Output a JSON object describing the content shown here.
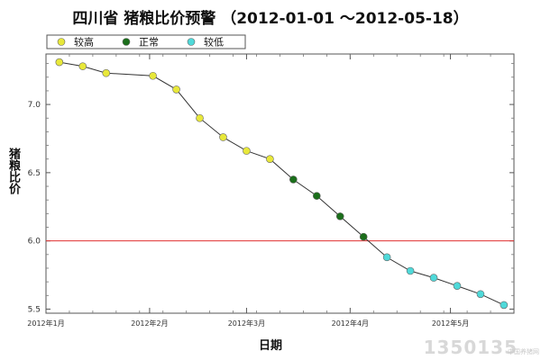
{
  "title": "四川省 猪粮比价预警 （2012-01-01 ～2012-05-18）",
  "xlabel": "日期",
  "ylabel": "猪粮比价",
  "watermark": {
    "text": "1350135",
    "sub": "中国养猪网"
  },
  "colors": {
    "high": "#e8e83a",
    "normal": "#1b6e1b",
    "low": "#4fd9d9",
    "line": "#333333",
    "threshold": "#e03030"
  },
  "chart_data": {
    "type": "scatter",
    "title": "四川省 猪粮比价预警 （2012-01-01 ～2012-05-18）",
    "xlabel": "日期",
    "ylabel": "猪粮比价",
    "legend": {
      "placement": "top-left",
      "entries": [
        {
          "key": "high",
          "label": "较高"
        },
        {
          "key": "normal",
          "label": "正常"
        },
        {
          "key": "low",
          "label": "较低"
        }
      ]
    },
    "xlim": [
      0,
      140
    ],
    "ylim": [
      5.47,
      7.37
    ],
    "xticks": [
      {
        "x": 0,
        "label": "2012年1月"
      },
      {
        "x": 31,
        "label": "2012年2月"
      },
      {
        "x": 60,
        "label": "2012年3月"
      },
      {
        "x": 91,
        "label": "2012年4月"
      },
      {
        "x": 121,
        "label": "2012年5月"
      }
    ],
    "yticks": [
      5.5,
      6.0,
      6.5,
      7.0
    ],
    "threshold": 6.0,
    "points": [
      {
        "x": 4,
        "y": 7.31,
        "level": "high"
      },
      {
        "x": 11,
        "y": 7.28,
        "level": "high"
      },
      {
        "x": 18,
        "y": 7.23,
        "level": "high"
      },
      {
        "x": 32,
        "y": 7.21,
        "level": "high"
      },
      {
        "x": 39,
        "y": 7.11,
        "level": "high"
      },
      {
        "x": 46,
        "y": 6.9,
        "level": "high"
      },
      {
        "x": 53,
        "y": 6.76,
        "level": "high"
      },
      {
        "x": 60,
        "y": 6.66,
        "level": "high"
      },
      {
        "x": 67,
        "y": 6.6,
        "level": "high"
      },
      {
        "x": 74,
        "y": 6.45,
        "level": "normal"
      },
      {
        "x": 81,
        "y": 6.33,
        "level": "normal"
      },
      {
        "x": 88,
        "y": 6.18,
        "level": "normal"
      },
      {
        "x": 95,
        "y": 6.03,
        "level": "normal"
      },
      {
        "x": 102,
        "y": 5.88,
        "level": "low"
      },
      {
        "x": 109,
        "y": 5.78,
        "level": "low"
      },
      {
        "x": 116,
        "y": 5.73,
        "level": "low"
      },
      {
        "x": 123,
        "y": 5.67,
        "level": "low"
      },
      {
        "x": 130,
        "y": 5.61,
        "level": "low"
      },
      {
        "x": 137,
        "y": 5.53,
        "level": "low"
      }
    ],
    "grid": false
  }
}
